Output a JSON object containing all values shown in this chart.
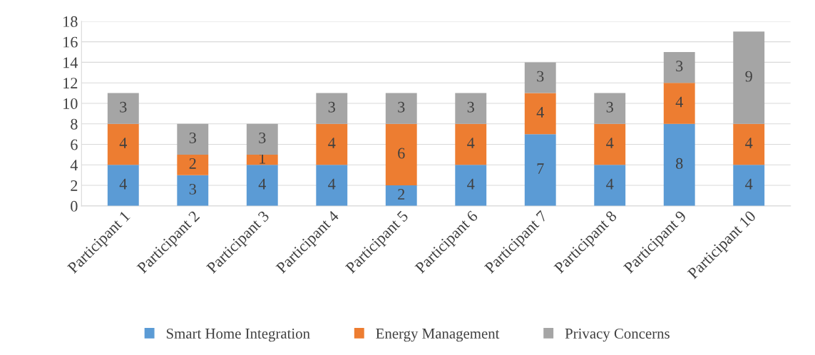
{
  "chart_data": {
    "type": "bar",
    "stacked": true,
    "categories": [
      "Participant 1",
      "Participant 2",
      "Participant 3",
      "Participant 4",
      "Participant 5",
      "Participant 6",
      "Participant 7",
      "Participant 8",
      "Participant 9",
      "Participant 10"
    ],
    "series": [
      {
        "name": "Smart Home Integration",
        "color": "#5b9bd5",
        "values": [
          4,
          3,
          4,
          4,
          2,
          4,
          7,
          4,
          8,
          4
        ]
      },
      {
        "name": "Energy Management",
        "color": "#ed7d31",
        "values": [
          4,
          2,
          1,
          4,
          6,
          4,
          4,
          4,
          4,
          4
        ]
      },
      {
        "name": "Privacy Concerns",
        "color": "#a5a5a5",
        "values": [
          3,
          3,
          3,
          3,
          3,
          3,
          3,
          3,
          3,
          9
        ]
      }
    ],
    "ylim": [
      0,
      18
    ],
    "yticks": [
      0,
      2,
      4,
      6,
      8,
      10,
      12,
      14,
      16,
      18
    ],
    "grid": "y",
    "legend": "bottom",
    "data_labels": true
  }
}
